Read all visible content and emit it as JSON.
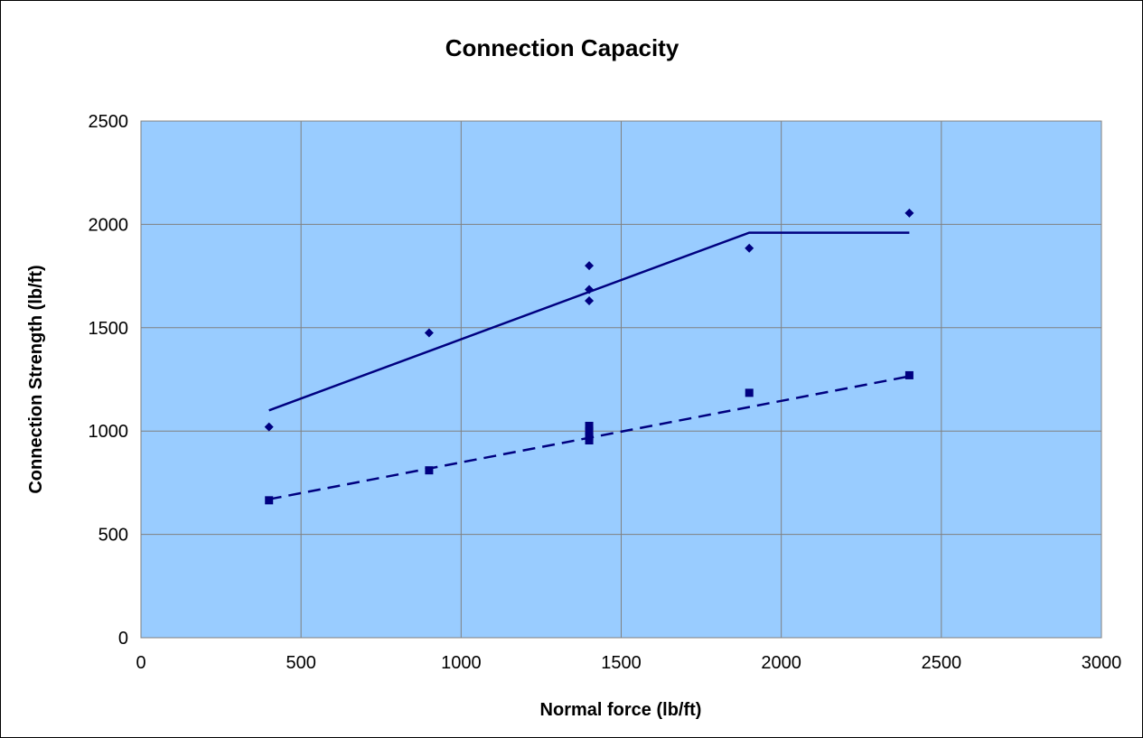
{
  "chart_data": {
    "type": "scatter",
    "title": "Connection Capacity",
    "xlabel": "Normal force (lb/ft)",
    "ylabel": "Connection Strength (lb/ft)",
    "xlim": [
      0,
      3000
    ],
    "ylim": [
      0,
      2500
    ],
    "xticks": [
      "0",
      "500",
      "1000",
      "1500",
      "2000",
      "2500",
      "3000"
    ],
    "yticks": [
      "0",
      "500",
      "1000",
      "1500",
      "2000",
      "2500"
    ],
    "grid": true,
    "legend": "none",
    "plot_background": "#99CCFF",
    "series_color": "#000080",
    "series": [
      {
        "marker": "diamond",
        "points": [
          {
            "x": 400,
            "y": 1020
          },
          {
            "x": 900,
            "y": 1475
          },
          {
            "x": 1400,
            "y": 1800
          },
          {
            "x": 1400,
            "y": 1685
          },
          {
            "x": 1400,
            "y": 1630
          },
          {
            "x": 1900,
            "y": 1885
          },
          {
            "x": 2400,
            "y": 2055
          }
        ]
      },
      {
        "marker": "square",
        "points": [
          {
            "x": 400,
            "y": 665
          },
          {
            "x": 900,
            "y": 810
          },
          {
            "x": 1400,
            "y": 1025
          },
          {
            "x": 1400,
            "y": 1000
          },
          {
            "x": 1400,
            "y": 975
          },
          {
            "x": 1400,
            "y": 955
          },
          {
            "x": 1900,
            "y": 1185
          },
          {
            "x": 2400,
            "y": 1270
          }
        ]
      }
    ],
    "lines": [
      {
        "style": "solid",
        "points": [
          {
            "x": 400,
            "y": 1100
          },
          {
            "x": 1900,
            "y": 1960
          },
          {
            "x": 2400,
            "y": 1960
          }
        ]
      },
      {
        "style": "dashed",
        "points": [
          {
            "x": 400,
            "y": 670
          },
          {
            "x": 2400,
            "y": 1265
          }
        ]
      }
    ]
  }
}
